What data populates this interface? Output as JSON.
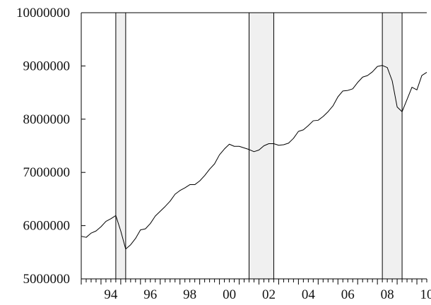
{
  "chart_data": {
    "type": "line",
    "title": "",
    "xlabel": "",
    "ylabel": "",
    "xlim": [
      1993.0,
      2010.5
    ],
    "ylim": [
      5000000,
      10000000
    ],
    "grid": false,
    "legend": "none",
    "y_ticks": [
      5000000,
      6000000,
      7000000,
      8000000,
      9000000,
      10000000
    ],
    "y_tick_labels": [
      "5000000",
      "6000000",
      "7000000",
      "8000000",
      "9000000",
      "10000000"
    ],
    "x_ticks": [
      1994.5,
      1996.5,
      1998.5,
      2000.5,
      2002.5,
      2004.5,
      2006.5,
      2008.5,
      2010.5
    ],
    "x_tick_labels": [
      "94",
      "96",
      "98",
      "00",
      "02",
      "04",
      "06",
      "08",
      "10"
    ],
    "shaded_periods": [
      [
        1994.75,
        1995.25
      ],
      [
        2001.5,
        2002.75
      ],
      [
        2008.25,
        2009.25
      ]
    ],
    "series": [
      {
        "x": [
          1993.0,
          1993.25,
          1993.5,
          1993.75,
          1994.0,
          1994.25,
          1994.5,
          1994.75,
          1995.0,
          1995.25,
          1995.5,
          1995.75,
          1996.0,
          1996.25,
          1996.5,
          1996.75,
          1997.0,
          1997.25,
          1997.5,
          1997.75,
          1998.0,
          1998.25,
          1998.5,
          1998.75,
          1999.0,
          1999.25,
          1999.5,
          1999.75,
          2000.0,
          2000.25,
          2000.5,
          2000.75,
          2001.0,
          2001.25,
          2001.5,
          2001.75,
          2002.0,
          2002.25,
          2002.5,
          2002.75,
          2003.0,
          2003.25,
          2003.5,
          2003.75,
          2004.0,
          2004.25,
          2004.5,
          2004.75,
          2005.0,
          2005.25,
          2005.5,
          2005.75,
          2006.0,
          2006.25,
          2006.5,
          2006.75,
          2007.0,
          2007.25,
          2007.5,
          2007.75,
          2008.0,
          2008.25,
          2008.5,
          2008.75,
          2009.0,
          2009.25,
          2009.5,
          2009.75,
          2010.0,
          2010.25,
          2010.5
        ],
        "values": [
          5800000,
          5780000,
          5860000,
          5900000,
          5980000,
          6080000,
          6130000,
          6190000,
          5900000,
          5560000,
          5640000,
          5760000,
          5920000,
          5940000,
          6040000,
          6180000,
          6270000,
          6360000,
          6460000,
          6590000,
          6660000,
          6710000,
          6770000,
          6770000,
          6840000,
          6940000,
          7060000,
          7160000,
          7330000,
          7440000,
          7530000,
          7490000,
          7490000,
          7460000,
          7430000,
          7390000,
          7420000,
          7500000,
          7540000,
          7540000,
          7510000,
          7520000,
          7550000,
          7640000,
          7770000,
          7800000,
          7880000,
          7970000,
          7980000,
          8050000,
          8140000,
          8250000,
          8420000,
          8530000,
          8540000,
          8570000,
          8690000,
          8790000,
          8820000,
          8890000,
          8990000,
          9010000,
          8970000,
          8720000,
          8230000,
          8140000,
          8370000,
          8600000,
          8550000,
          8820000,
          8880000
        ]
      }
    ]
  }
}
